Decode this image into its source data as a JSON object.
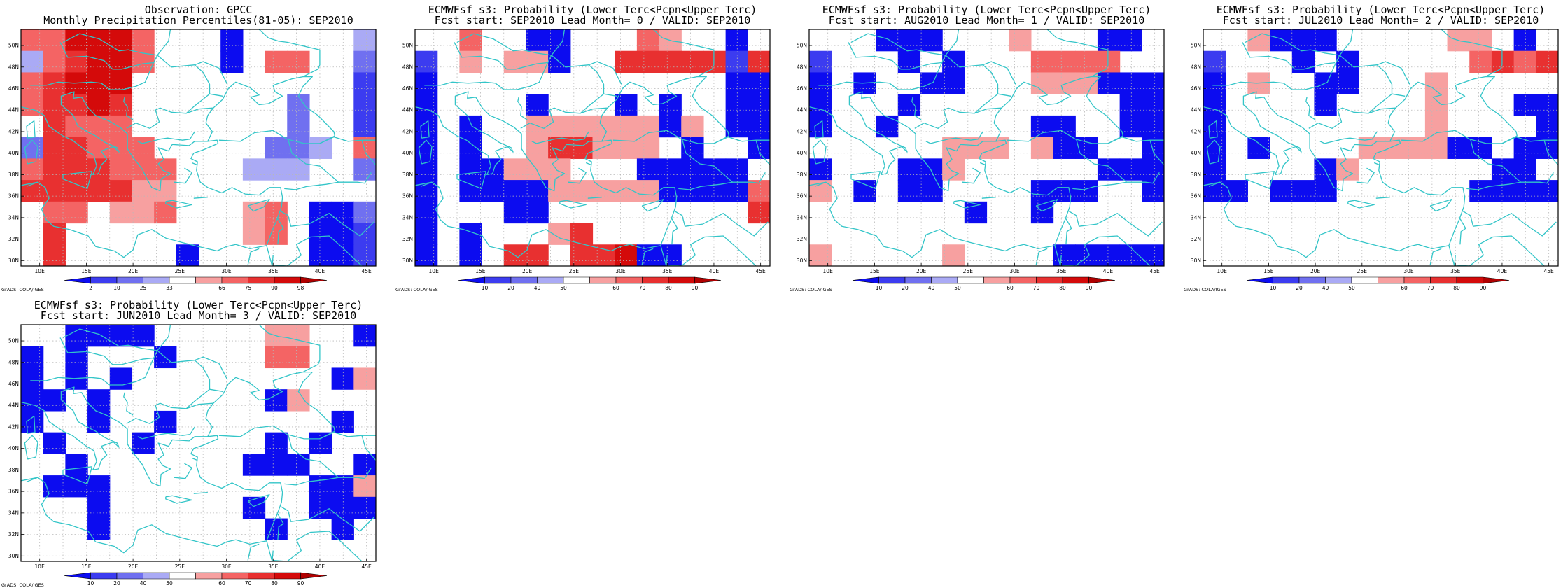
{
  "credit": "GrADS: COLA/IGES",
  "x_tick_labels": [
    "10E",
    "15E",
    "20E",
    "25E",
    "30E",
    "35E",
    "40E",
    "45E"
  ],
  "y_tick_labels": [
    "30N",
    "32N",
    "34N",
    "36N",
    "38N",
    "40N",
    "42N",
    "44N",
    "46N",
    "48N",
    "50N"
  ],
  "colors": {
    "coastline": "#33c5c8",
    "frame": "#000000",
    "grid": "#b8b8b8",
    "levels": [
      "#0c0cf0",
      "#3c3cf0",
      "#7070f0",
      "#aaaaf5",
      "#ffffff",
      "#f7a0a0",
      "#f46464",
      "#e83030",
      "#d40a0a",
      "#b00000"
    ]
  },
  "colorbars": {
    "obs": {
      "labels": [
        "2",
        "10",
        "25",
        "33",
        "66",
        "75",
        "90",
        "98"
      ]
    },
    "prob": {
      "labels": [
        "10",
        "20",
        "40",
        "50",
        "60",
        "70",
        "80",
        "90"
      ]
    }
  },
  "panels": [
    {
      "id": "obs",
      "title_line1": "Observation: GPCC",
      "title_line2": "Monthly Precipitation Percentiles(81-05): SEP2010",
      "colorbar": "obs",
      "grid": [
        "6688864440444443",
        "3678864440466442",
        "6788844444444441",
        "6778744444442441",
        "4766644444442441",
        "2776664444422346",
        "6777666444333442",
        "7777755444444444",
        "4664556444564002",
        "4744444444564001",
        "4744444044444001"
      ]
    },
    {
      "id": "lead0",
      "title_line1": "ECMWFsf s3: Probability (Lower Terc<Pcpn<Upper Terc)",
      "title_line2": "Fcst start: SEP2010  Lead Month= 0 / VALID: SEP2010",
      "colorbar": "prob",
      "grid": [
        "4464400444654404",
        "1454550447777717",
        "0444444444444400",
        "0444404440404400",
        "0404455555505400",
        "0404457755540440",
        "0400555444000004",
        "0400005555500006",
        "0444004444444447",
        "0404445744444444",
        "0404774778004444"
      ]
    },
    {
      "id": "lead1",
      "title_line1": "ECMWFsf s3: Probability (Lower Terc<Pcpn<Upper Terc)",
      "title_line2": "Fcst start: AUG2010  Lead Month= 1 / VALID: SEP2010",
      "colorbar": "prob",
      "grid": [
        "4440004445444004",
        "1444040444666644",
        "0404400444555000",
        "0444044444444400",
        "0440444444004400",
        "4444445554500440",
        "0444005444444000",
        "5404004444000440",
        "4444444044044444",
        "4444444444444444",
        "5444445444400000"
      ]
    },
    {
      "id": "lead2",
      "title_line1": "ECMWFsf s3: Probability (Lower Terc<Pcpn<Upper Terc)",
      "title_line2": "Fcst start: JUL2010  Lead Month= 2 / VALID: SEP2010",
      "colorbar": "prob",
      "grid": [
        "4450004444455404",
        "1444040444446767",
        "0454400444544444",
        "0444404444544400",
        "0444444444544440",
        "0404444555500400",
        "0444405444444004",
        "0040004444440000",
        "4444444444444444",
        "4444444444444444",
        "4444444444444444"
      ]
    },
    {
      "id": "lead3",
      "title_line1": "ECMWFsf s3: Probability (Lower Terc<Pcpn<Upper Terc)",
      "title_line2": "Fcst start: JUN2010  Lead Month= 3 / VALID: SEP2010",
      "colorbar": "prob",
      "grid": [
        "4400004444455440",
        "0404440444466444",
        "0404044444444405",
        "0040444444405444",
        "0440440444444404",
        "4044404444404044",
        "4404444444000440",
        "4000444444444005",
        "4440444444044000",
        "4440444444404404",
        "4444444444444444"
      ]
    }
  ]
}
